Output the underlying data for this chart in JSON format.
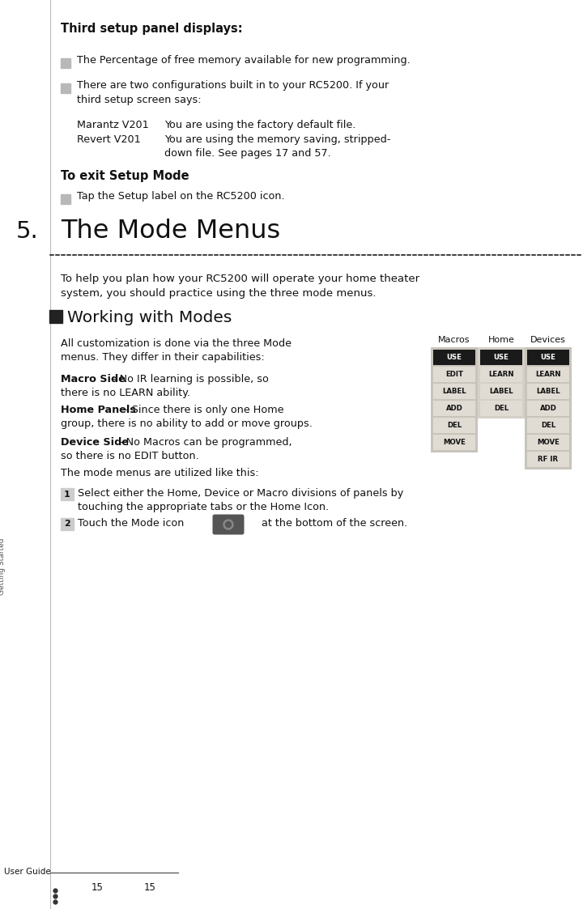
{
  "bg_color": "#ffffff",
  "top_section": {
    "title": "Third setup panel displays:",
    "bullet1_text": "The Percentage of free memory available for new programming.",
    "bullet2_line1": "There are two configurations built in to your RC5200. If your",
    "bullet2_line2": "third setup screen says:",
    "marantz_label": "Marantz V201",
    "revert_label": "Revert V201",
    "marantz_desc": "You are using the factory default file.",
    "revert_desc1": "You are using the memory saving, stripped-",
    "revert_desc2": "down file. See pages 17 and 57.",
    "exit_title": "To exit Setup Mode",
    "exit_bullet": "Tap the Setup label on the RC5200 icon."
  },
  "section5": {
    "number": "5.",
    "title": "The Mode Menus",
    "intro_line1": "To help you plan how your RC5200 will operate your home theater",
    "intro_line2": "system, you should practice using the three mode menus.",
    "subsection_title": "Working with Modes",
    "body1_line1": "All customization is done via the three Mode",
    "body1_line2": "menus. They differ in their capabilities:",
    "macro_bold": "Macro Side",
    "macro_rest1": " - No IR learning is possible, so",
    "macro_rest2": "there is no LEARN ability.",
    "home_bold": "Home Panels",
    "home_rest1": " - Since there is only one Home",
    "home_rest2": "group, there is no ability to add or move groups.",
    "device_bold": "Device Side",
    "device_rest1": " - No Macros can be programmed,",
    "device_rest2": "so there is no EDIT button.",
    "mode_menus_text": "The mode menus are utilized like this:",
    "step1_line1": "Select either the Home, Device or Macro divisions of panels by",
    "step1_line2": "touching the appropriate tabs or the Home Icon.",
    "step2_text1": "Touch the Mode icon",
    "step2_text2": "at the bottom of the screen.",
    "macros_col_label": "Macros",
    "home_col_label": "Home",
    "devices_col_label": "Devices",
    "macros_buttons": [
      "USE",
      "EDIT",
      "LABEL",
      "ADD",
      "DEL",
      "MOVE"
    ],
    "home_buttons": [
      "USE",
      "LEARN",
      "LABEL",
      "DEL"
    ],
    "devices_buttons": [
      "USE",
      "LEARN",
      "LABEL",
      "ADD",
      "DEL",
      "MOVE",
      "RF IR"
    ],
    "macros_active": [
      0
    ],
    "home_active": [
      0
    ],
    "devices_active": [
      0
    ]
  },
  "footer": {
    "user_guide_text": "User Guide",
    "page_left": "15",
    "page_right": "15"
  }
}
